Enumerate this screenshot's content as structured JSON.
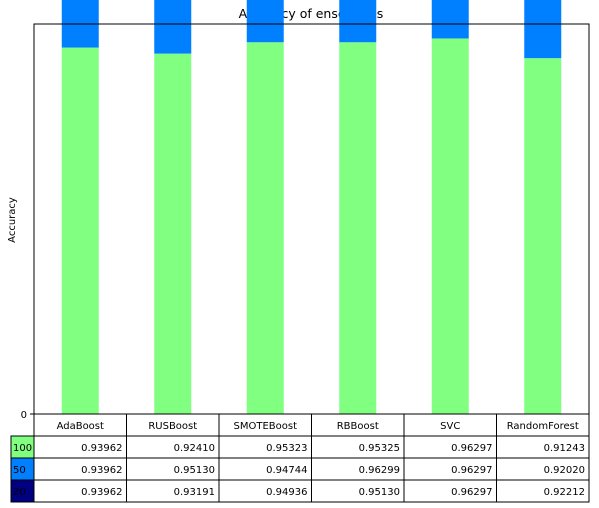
{
  "chart_data": {
    "type": "bar",
    "title": "Accuracy of ensembles",
    "ylabel": "Accuracy",
    "xlabel": "",
    "ylim": [
      0,
      1
    ],
    "yticks": [
      0
    ],
    "grid": false,
    "legend": "table",
    "stacked": true,
    "categories": [
      "AdaBoost",
      "RUSBoost",
      "SMOTEBoost",
      "RBBoost",
      "SVC",
      "RandomForest"
    ],
    "series": [
      {
        "name": "100",
        "color": "#80ff80",
        "values": [
          "0.93962",
          "0.92410",
          "0.95323",
          "0.95325",
          "0.96297",
          "0.91243"
        ]
      },
      {
        "name": "50",
        "color": "#0080ff",
        "values": [
          "0.93962",
          "0.95130",
          "0.94744",
          "0.96299",
          "0.96297",
          "0.92020"
        ]
      },
      {
        "name": "20",
        "color": "#000080",
        "values": [
          "0.93962",
          "0.93191",
          "0.94936",
          "0.95130",
          "0.96297",
          "0.92212"
        ]
      }
    ]
  }
}
